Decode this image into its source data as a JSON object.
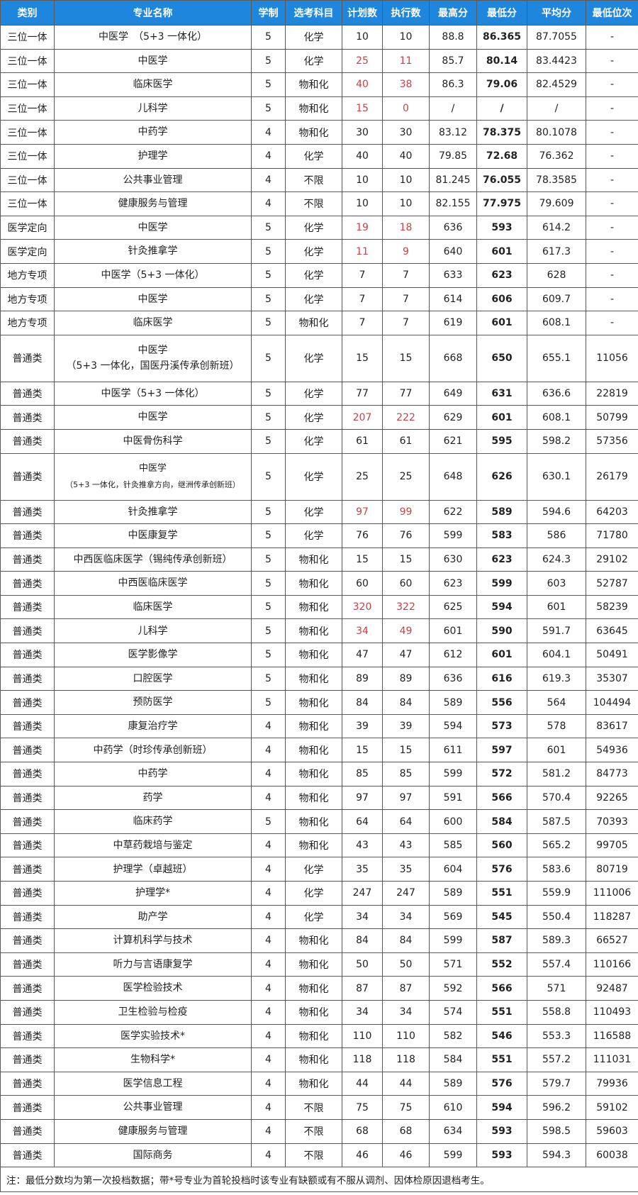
{
  "colors": {
    "header_bg": "#1e86dc",
    "highlight_red": "#c9414a"
  },
  "table": {
    "headers": [
      "类别",
      "专业名称",
      "学制",
      "选考科目",
      "计划数",
      "执行数",
      "最高分",
      "最低分",
      "平均分",
      "最低位次"
    ],
    "rows": [
      {
        "cells": [
          "三位一体",
          [
            "中医学　（5+3 一体化）"
          ],
          "5",
          "化学",
          "10",
          "10",
          "88.8",
          "86.365",
          "87.7055",
          "-"
        ]
      },
      {
        "cells": [
          "三位一体",
          [
            "中医学"
          ],
          "5",
          "化学",
          "25",
          "11",
          "85.7",
          "80.14",
          "83.4423",
          "-"
        ],
        "red": true
      },
      {
        "cells": [
          "三位一体",
          [
            "临床医学"
          ],
          "5",
          "物和化",
          "40",
          "38",
          "86.3",
          "79.06",
          "82.4529",
          "-"
        ],
        "red": true
      },
      {
        "cells": [
          "三位一体",
          [
            "儿科学"
          ],
          "5",
          "物和化",
          "15",
          "0",
          "/",
          "/",
          "/",
          "-"
        ],
        "red": true
      },
      {
        "cells": [
          "三位一体",
          [
            "中药学"
          ],
          "4",
          "物和化",
          "30",
          "30",
          "83.12",
          "78.375",
          "80.1078",
          "-"
        ]
      },
      {
        "cells": [
          "三位一体",
          [
            "护理学"
          ],
          "4",
          "化学",
          "40",
          "40",
          "79.85",
          "72.68",
          "76.362",
          "-"
        ]
      },
      {
        "cells": [
          "三位一体",
          [
            "公共事业管理"
          ],
          "4",
          "不限",
          "10",
          "10",
          "81.245",
          "76.055",
          "78.3585",
          "-"
        ]
      },
      {
        "cells": [
          "三位一体",
          [
            "健康服务与管理"
          ],
          "4",
          "不限",
          "10",
          "10",
          "82.155",
          "77.975",
          "79.609",
          "-"
        ]
      },
      {
        "cells": [
          "医学定向",
          [
            "中医学"
          ],
          "5",
          "化学",
          "19",
          "18",
          "636",
          "593",
          "614.2",
          "-"
        ],
        "red": true
      },
      {
        "cells": [
          "医学定向",
          [
            "针灸推拿学"
          ],
          "5",
          "化学",
          "11",
          "9",
          "640",
          "601",
          "617.3",
          "-"
        ],
        "red": true
      },
      {
        "cells": [
          "地方专项",
          [
            "中医学（5+3 一体化）"
          ],
          "5",
          "化学",
          "7",
          "7",
          "633",
          "623",
          "628",
          "-"
        ]
      },
      {
        "cells": [
          "地方专项",
          [
            "中医学"
          ],
          "5",
          "化学",
          "7",
          "7",
          "614",
          "606",
          "609.7",
          "-"
        ]
      },
      {
        "cells": [
          "地方专项",
          [
            "临床医学"
          ],
          "5",
          "物和化",
          "7",
          "7",
          "619",
          "601",
          "608.1",
          "-"
        ]
      },
      {
        "cells": [
          "普通类",
          [
            "中医学",
            "（5+3 一体化，国医丹溪传承创新班）"
          ],
          "5",
          "化学",
          "15",
          "15",
          "668",
          "650",
          "655.1",
          "11056"
        ]
      },
      {
        "cells": [
          "普通类",
          [
            "中医学（5+3 一体化）"
          ],
          "5",
          "化学",
          "77",
          "77",
          "649",
          "631",
          "636.6",
          "22819"
        ]
      },
      {
        "cells": [
          "普通类",
          [
            "中医学"
          ],
          "5",
          "化学",
          "207",
          "222",
          "629",
          "601",
          "608.1",
          "50799"
        ],
        "red": true
      },
      {
        "cells": [
          "普通类",
          [
            "中医骨伤科学"
          ],
          "5",
          "化学",
          "61",
          "61",
          "621",
          "595",
          "598.2",
          "57356"
        ]
      },
      {
        "cells": [
          "普通类",
          [
            "中医学",
            "（5+3 一体化，针灸推拿方向，继洲传承创新班）"
          ],
          "5",
          "化学",
          "25",
          "25",
          "648",
          "626",
          "630.1",
          "26179"
        ],
        "small": true
      },
      {
        "cells": [
          "普通类",
          [
            "针灸推拿学"
          ],
          "5",
          "化学",
          "97",
          "99",
          "622",
          "589",
          "594.6",
          "64203"
        ],
        "red": true
      },
      {
        "cells": [
          "普通类",
          [
            "中医康复学"
          ],
          "5",
          "化学",
          "76",
          "76",
          "599",
          "583",
          "586",
          "71780"
        ]
      },
      {
        "cells": [
          "普通类",
          [
            "中西医临床医学（锡纯传承创新班）"
          ],
          "5",
          "物和化",
          "15",
          "15",
          "630",
          "623",
          "624.3",
          "29102"
        ]
      },
      {
        "cells": [
          "普通类",
          [
            "中西医临床医学"
          ],
          "5",
          "物和化",
          "60",
          "60",
          "623",
          "599",
          "603",
          "52787"
        ]
      },
      {
        "cells": [
          "普通类",
          [
            "临床医学"
          ],
          "5",
          "物和化",
          "320",
          "322",
          "625",
          "594",
          "601",
          "58239"
        ],
        "red": true
      },
      {
        "cells": [
          "普通类",
          [
            "儿科学"
          ],
          "5",
          "物和化",
          "34",
          "49",
          "601",
          "590",
          "591.7",
          "63645"
        ],
        "red": true
      },
      {
        "cells": [
          "普通类",
          [
            "医学影像学"
          ],
          "5",
          "物和化",
          "47",
          "47",
          "612",
          "601",
          "604.1",
          "50491"
        ]
      },
      {
        "cells": [
          "普通类",
          [
            "口腔医学"
          ],
          "5",
          "物和化",
          "89",
          "89",
          "636",
          "616",
          "619.3",
          "35307"
        ]
      },
      {
        "cells": [
          "普通类",
          [
            "预防医学"
          ],
          "5",
          "物和化",
          "84",
          "84",
          "589",
          "556",
          "564",
          "104494"
        ]
      },
      {
        "cells": [
          "普通类",
          [
            "康复治疗学"
          ],
          "4",
          "物和化",
          "39",
          "39",
          "594",
          "573",
          "578",
          "83617"
        ]
      },
      {
        "cells": [
          "普通类",
          [
            "中药学（时珍传承创新班）"
          ],
          "4",
          "物和化",
          "15",
          "15",
          "611",
          "597",
          "601",
          "54936"
        ]
      },
      {
        "cells": [
          "普通类",
          [
            "中药学"
          ],
          "4",
          "物和化",
          "85",
          "85",
          "599",
          "572",
          "581.2",
          "84773"
        ]
      },
      {
        "cells": [
          "普通类",
          [
            "药学"
          ],
          "4",
          "物和化",
          "97",
          "97",
          "591",
          "566",
          "570.4",
          "92265"
        ]
      },
      {
        "cells": [
          "普通类",
          [
            "临床药学"
          ],
          "5",
          "物和化",
          "64",
          "64",
          "600",
          "584",
          "587.5",
          "70393"
        ]
      },
      {
        "cells": [
          "普通类",
          [
            "中草药栽培与鉴定"
          ],
          "4",
          "物和化",
          "43",
          "43",
          "585",
          "560",
          "565.2",
          "99705"
        ]
      },
      {
        "cells": [
          "普通类",
          [
            "护理学（卓越班）"
          ],
          "4",
          "化学",
          "35",
          "35",
          "604",
          "576",
          "583.6",
          "80719"
        ]
      },
      {
        "cells": [
          "普通类",
          [
            "护理学*"
          ],
          "4",
          "化学",
          "247",
          "247",
          "589",
          "551",
          "559.9",
          "111006"
        ]
      },
      {
        "cells": [
          "普通类",
          [
            "助产学"
          ],
          "4",
          "化学",
          "34",
          "34",
          "569",
          "545",
          "550.4",
          "118287"
        ]
      },
      {
        "cells": [
          "普通类",
          [
            "计算机科学与技术"
          ],
          "4",
          "物和化",
          "84",
          "84",
          "599",
          "587",
          "589.3",
          "66527"
        ]
      },
      {
        "cells": [
          "普通类",
          [
            "听力与言语康复学"
          ],
          "4",
          "物和化",
          "50",
          "50",
          "571",
          "552",
          "557.4",
          "110166"
        ]
      },
      {
        "cells": [
          "普通类",
          [
            "医学检验技术"
          ],
          "4",
          "物和化",
          "87",
          "87",
          "592",
          "566",
          "571",
          "92487"
        ]
      },
      {
        "cells": [
          "普通类",
          [
            "卫生检验与检疫"
          ],
          "4",
          "物和化",
          "34",
          "34",
          "574",
          "551",
          "558.8",
          "110493"
        ]
      },
      {
        "cells": [
          "普通类",
          [
            "医学实验技术*"
          ],
          "4",
          "物和化",
          "110",
          "110",
          "582",
          "546",
          "553.3",
          "116588"
        ]
      },
      {
        "cells": [
          "普通类",
          [
            "生物科学*"
          ],
          "4",
          "物和化",
          "118",
          "118",
          "584",
          "551",
          "557.2",
          "111031"
        ]
      },
      {
        "cells": [
          "普通类",
          [
            "医学信息工程"
          ],
          "4",
          "物和化",
          "44",
          "44",
          "589",
          "576",
          "579.7",
          "79936"
        ]
      },
      {
        "cells": [
          "普通类",
          [
            "公共事业管理"
          ],
          "4",
          "不限",
          "75",
          "75",
          "610",
          "594",
          "596.2",
          "59102"
        ]
      },
      {
        "cells": [
          "普通类",
          [
            "健康服务与管理"
          ],
          "4",
          "不限",
          "68",
          "68",
          "634",
          "593",
          "598.5",
          "59603"
        ]
      },
      {
        "cells": [
          "普通类",
          [
            "国际商务"
          ],
          "4",
          "不限",
          "46",
          "46",
          "599",
          "593",
          "594.3",
          "60038"
        ]
      }
    ],
    "note": "注：最低分数均为第一次投档数据；带*号专业为首轮投档时该专业有缺额或有不服从调剂、因体检原因退档考生。"
  }
}
